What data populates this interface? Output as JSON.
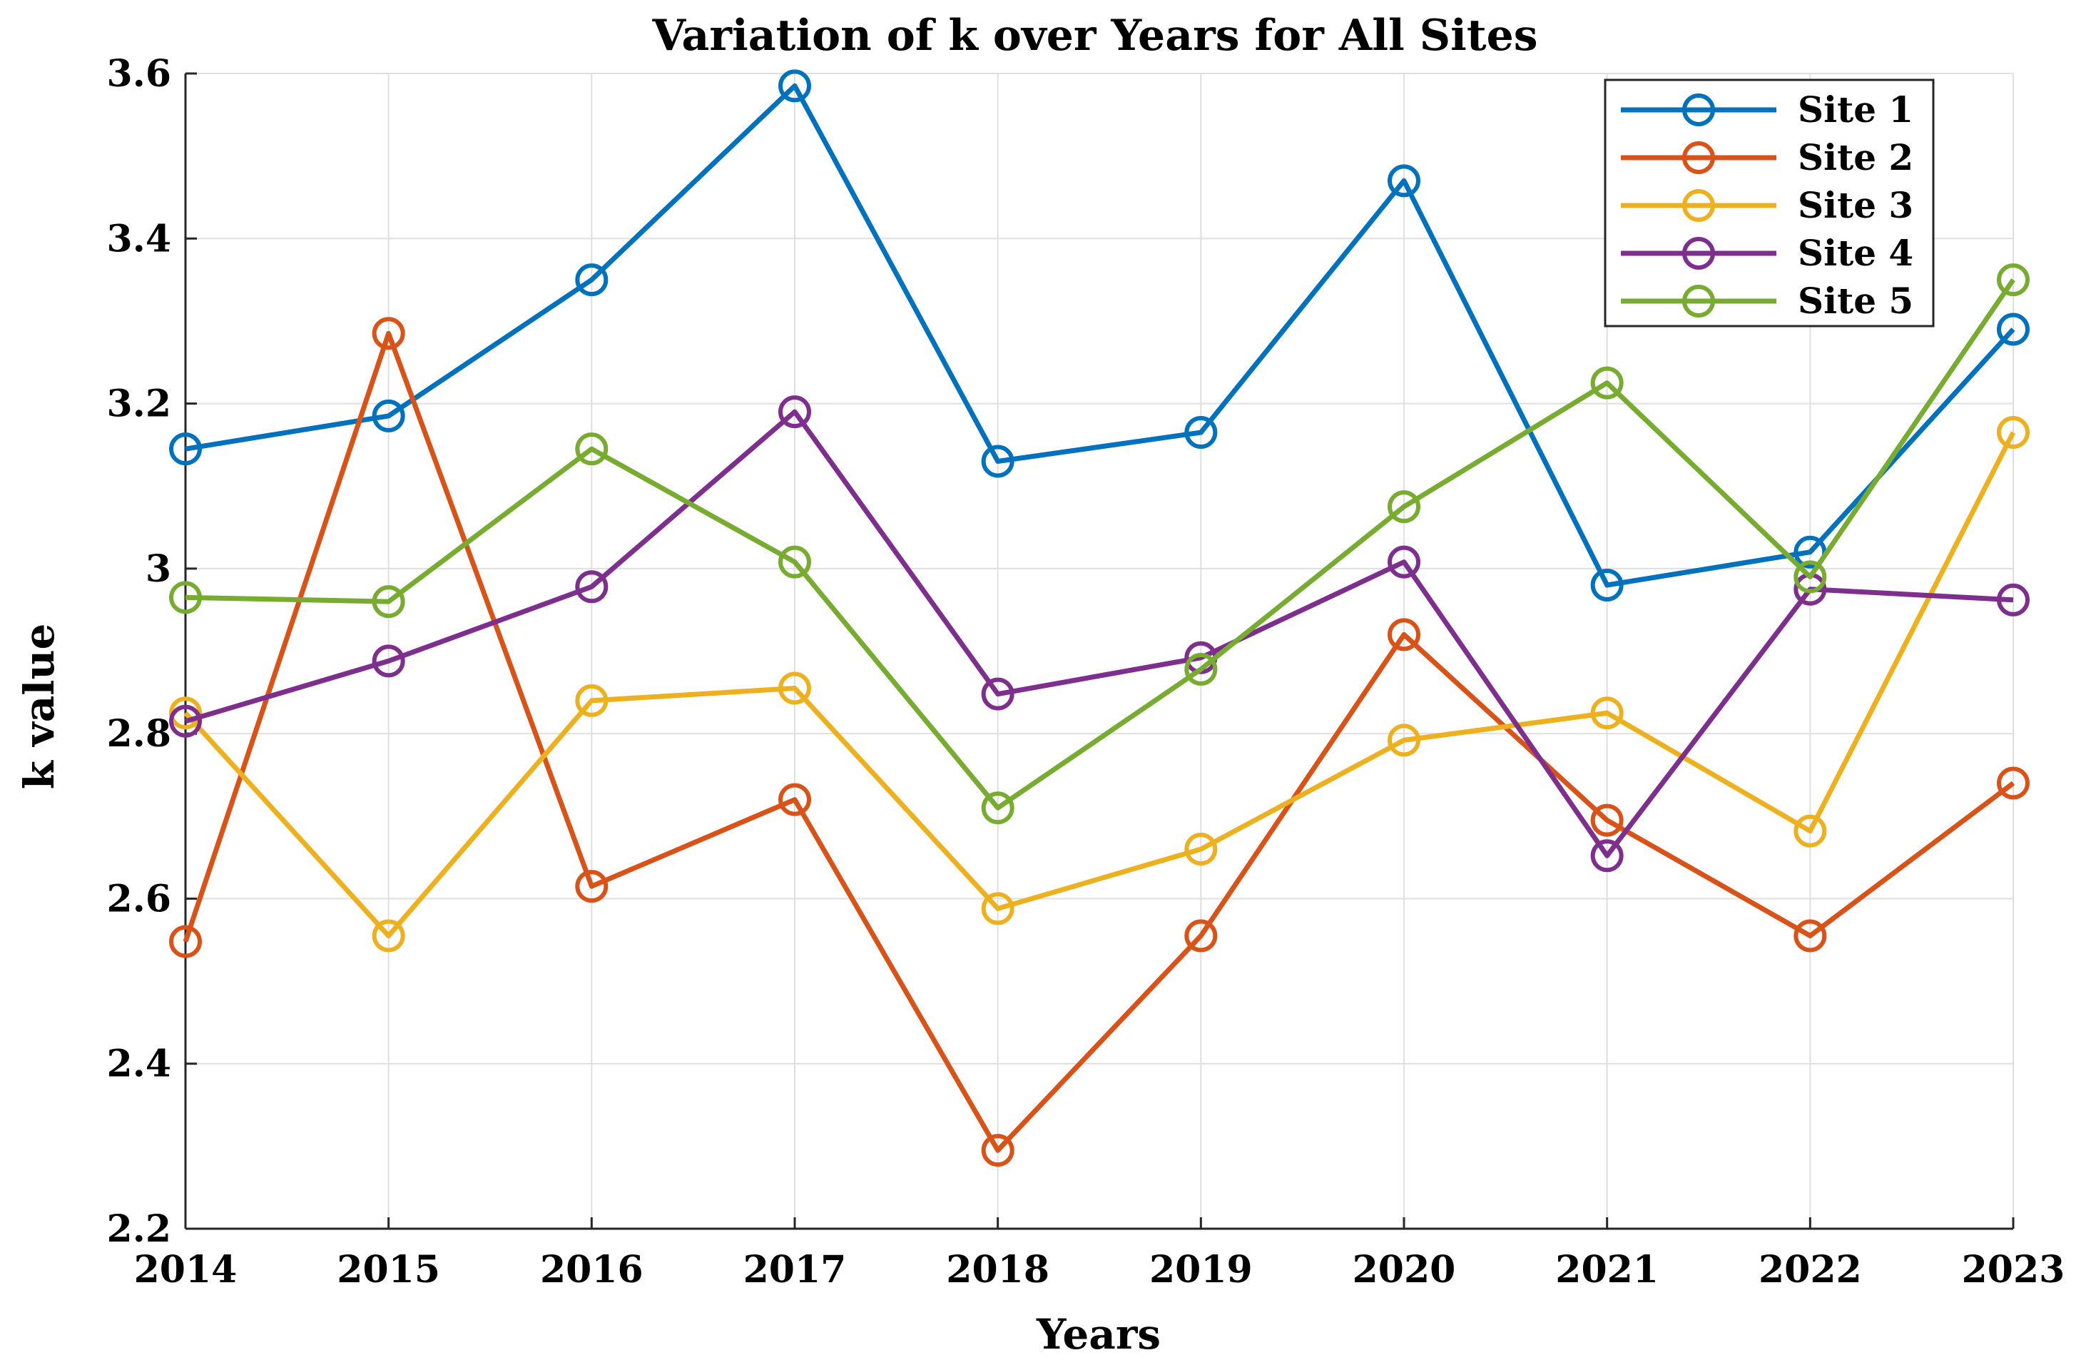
{
  "chart_data": {
    "type": "line",
    "title": "Variation of k over Years for All Sites",
    "xlabel": "Years",
    "ylabel": "k value",
    "x": [
      2014,
      2015,
      2016,
      2017,
      2018,
      2019,
      2020,
      2021,
      2022,
      2023
    ],
    "x_tick_labels": [
      "2014",
      "2015",
      "2016",
      "2017",
      "2018",
      "2019",
      "2020",
      "2021",
      "2022",
      "2023"
    ],
    "ylim": [
      2.2,
      3.6
    ],
    "y_ticks": [
      2.2,
      2.4,
      2.6,
      2.8,
      3.0,
      3.2,
      3.4,
      3.6
    ],
    "y_tick_labels": [
      "2.2",
      "2.4",
      "2.6",
      "2.8",
      "3",
      "3.2",
      "3.4",
      "3.6"
    ],
    "grid": true,
    "legend_position": "top-right",
    "marker": "circle",
    "series": [
      {
        "name": "Site 1",
        "color": "#0072BD",
        "values": [
          3.145,
          3.185,
          3.35,
          3.585,
          3.13,
          3.165,
          3.47,
          2.98,
          3.02,
          3.29
        ]
      },
      {
        "name": "Site 2",
        "color": "#D95319",
        "values": [
          2.548,
          3.285,
          2.615,
          2.72,
          2.295,
          2.555,
          2.92,
          2.695,
          2.555,
          2.74
        ]
      },
      {
        "name": "Site 3",
        "color": "#EDB120",
        "values": [
          2.825,
          2.555,
          2.84,
          2.855,
          2.588,
          2.66,
          2.792,
          2.825,
          2.682,
          3.165
        ]
      },
      {
        "name": "Site 4",
        "color": "#7E2F8E",
        "values": [
          2.815,
          2.888,
          2.978,
          3.19,
          2.848,
          2.892,
          3.008,
          2.652,
          2.975,
          2.962
        ]
      },
      {
        "name": "Site 5",
        "color": "#77AC30",
        "values": [
          2.965,
          2.96,
          3.145,
          3.008,
          2.71,
          2.878,
          3.075,
          3.225,
          2.99,
          3.35
        ]
      }
    ]
  }
}
